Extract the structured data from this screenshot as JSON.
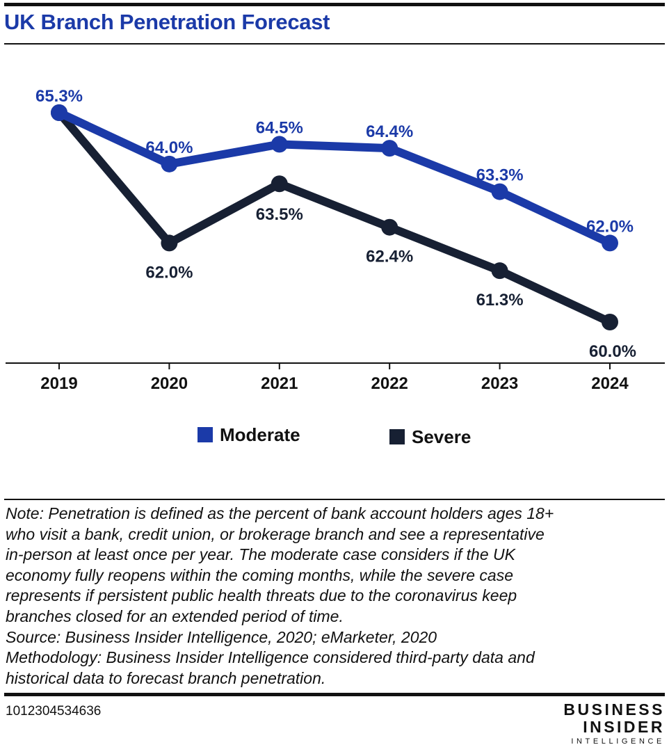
{
  "title": "UK Branch Penetration Forecast",
  "chart_data": {
    "type": "line",
    "x": [
      "2019",
      "2020",
      "2021",
      "2022",
      "2023",
      "2024"
    ],
    "series": [
      {
        "name": "Moderate",
        "color": "#1b3aa8",
        "values": [
          65.3,
          64.0,
          64.5,
          64.4,
          63.3,
          62.0
        ],
        "labels": [
          "65.3%",
          "64.0%",
          "64.5%",
          "64.4%",
          "63.3%",
          "62.0%"
        ]
      },
      {
        "name": "Severe",
        "color": "#172033",
        "values": [
          65.3,
          62.0,
          63.5,
          62.4,
          61.3,
          60.0
        ],
        "labels": [
          "65.3%",
          "62.0%",
          "63.5%",
          "62.4%",
          "61.3%",
          "60.0%"
        ]
      }
    ],
    "ylim": [
      59.0,
      66.5
    ],
    "grid": false,
    "legend_position": "bottom",
    "xlabel": "",
    "ylabel": ""
  },
  "notes": [
    "Note: Penetration is defined as the percent of bank account holders ages 18+",
    "who visit a bank, credit union, or brokerage branch and see a representative",
    "in-person at least once per year. The moderate case considers if the UK",
    "economy fully reopens within the coming months, while the severe case",
    "represents if persistent public health threats due to the coronavirus keep",
    "branches closed for an extended period of time.",
    "Source: Business Insider Intelligence, 2020; eMarketer, 2020",
    "Methodology: Business Insider Intelligence considered third-party data and",
    "historical data to forecast branch penetration."
  ],
  "chart_id": "1012304534636",
  "logo": {
    "line1": "BUSINESS",
    "line2": "INSIDER",
    "line3": "INTELLIGENCE"
  }
}
